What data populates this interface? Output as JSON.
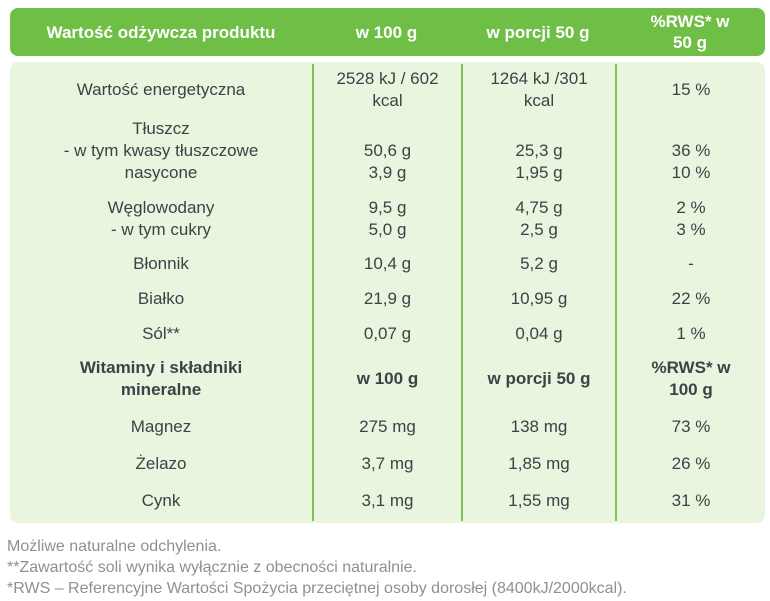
{
  "colors": {
    "header_green": "#6fbe45",
    "body_green": "#e9f5de",
    "divider_green": "#7fbf5c",
    "body_text": "#3d4246",
    "footnote_text": "#8b9196"
  },
  "table": {
    "header": {
      "nutrient": "Wartość odżywcza produktu",
      "per100": "w 100 g",
      "per50": "w porcji 50 g",
      "rws": "%RWS* w\n50 g"
    },
    "rows": [
      {
        "label": "Wartość energetyczna",
        "per100": "2528 kJ / 602\nkcal",
        "per50": "1264 kJ /301\nkcal",
        "rws": "15 %"
      },
      {
        "label": "Tłuszcz\n- w tym kwasy tłuszczowe\nnasycone",
        "per100": "50,6 g\n3,9 g",
        "per50": "25,3 g\n1,95 g",
        "rws": "36 %\n10 %"
      },
      {
        "label": "Węglowodany\n- w tym cukry",
        "per100": "9,5 g\n5,0 g",
        "per50": "4,75 g\n2,5 g",
        "rws": "2 %\n3 %"
      },
      {
        "label": "Błonnik",
        "per100": "10,4 g",
        "per50": "5,2 g",
        "rws": "-"
      },
      {
        "label": "Białko",
        "per100": "21,9 g",
        "per50": "10,95 g",
        "rws": "22 %"
      },
      {
        "label": "Sól**",
        "per100": "0,07 g",
        "per50": "0,04 g",
        "rws": "1 %"
      },
      {
        "label": "Witaminy i składniki\nmineralne",
        "per100": "w 100 g",
        "per50": "w porcji 50 g",
        "rws": "%RWS* w\n100 g"
      },
      {
        "label": "Magnez",
        "per100": "275 mg",
        "per50": "138 mg",
        "rws": "73 %"
      },
      {
        "label": "Żelazo",
        "per100": "3,7 mg",
        "per50": "1,85 mg",
        "rws": "26 %"
      },
      {
        "label": "Cynk",
        "per100": "3,1 mg",
        "per50": "1,55 mg",
        "rws": "31 %"
      }
    ],
    "footnotes": [
      "Możliwe naturalne odchylenia.",
      "**Zawartość soli wynika wyłącznie z obecności naturalnie.",
      "*RWS – Referencyjne Wartości Spożycia przeciętnej osoby dorosłej (8400kJ/2000kcal)."
    ]
  }
}
